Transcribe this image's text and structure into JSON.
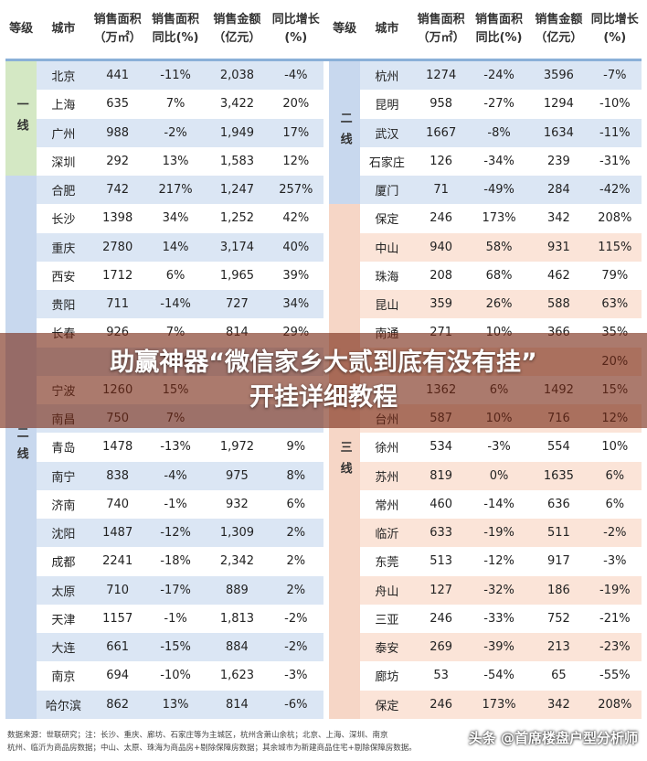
{
  "headers": {
    "tier": "等级",
    "city": "城市",
    "area": "销售面积（万㎡）",
    "area_yoy": "销售面积同比(%)",
    "amount": "销售金额（亿元）",
    "amount_yoy": "同比增长(%)",
    "amount_yoy_right": "同比增长(%)"
  },
  "tiers": {
    "t1": "一线",
    "t2": "二线",
    "t3": "三线"
  },
  "left_rows": [
    [
      "北京",
      "441",
      "-11%",
      "2,038",
      "-4%"
    ],
    [
      "上海",
      "635",
      "7%",
      "3,422",
      "20%"
    ],
    [
      "广州",
      "988",
      "-2%",
      "1,949",
      "17%"
    ],
    [
      "深圳",
      "292",
      "13%",
      "1,583",
      "12%"
    ],
    [
      "合肥",
      "742",
      "217%",
      "1,247",
      "257%"
    ],
    [
      "长沙",
      "1398",
      "34%",
      "1,252",
      "42%"
    ],
    [
      "重庆",
      "2780",
      "14%",
      "3,174",
      "40%"
    ],
    [
      "西安",
      "1712",
      "6%",
      "1,965",
      "39%"
    ],
    [
      "贵阳",
      "711",
      "-14%",
      "727",
      "34%"
    ],
    [
      "长春",
      "926",
      "7%",
      "814",
      "29%"
    ],
    [
      "",
      "",
      "11%",
      "",
      ""
    ],
    [
      "宁波",
      "1260",
      "15%",
      "",
      ""
    ],
    [
      "南昌",
      "750",
      "7%",
      "",
      ""
    ],
    [
      "青岛",
      "1478",
      "-13%",
      "1,972",
      "9%"
    ],
    [
      "南宁",
      "838",
      "-4%",
      "975",
      "8%"
    ],
    [
      "济南",
      "740",
      "-1%",
      "932",
      "6%"
    ],
    [
      "沈阳",
      "1487",
      "-12%",
      "1,309",
      "2%"
    ],
    [
      "成都",
      "2241",
      "-18%",
      "2,342",
      "2%"
    ],
    [
      "太原",
      "710",
      "-17%",
      "889",
      "2%"
    ],
    [
      "天津",
      "1157",
      "-1%",
      "1,813",
      "-2%"
    ],
    [
      "大连",
      "661",
      "-15%",
      "884",
      "-2%"
    ],
    [
      "南京",
      "694",
      "-10%",
      "1,623",
      "-3%"
    ],
    [
      "哈尔滨",
      "862",
      "13%",
      "814",
      "-6%"
    ]
  ],
  "right_rows": [
    [
      "杭州",
      "1274",
      "-24%",
      "3596",
      "-7%"
    ],
    [
      "昆明",
      "958",
      "-27%",
      "1294",
      "-10%"
    ],
    [
      "武汉",
      "1667",
      "-8%",
      "1634",
      "-11%"
    ],
    [
      "石家庄",
      "126",
      "-34%",
      "239",
      "-31%"
    ],
    [
      "厦门",
      "71",
      "-49%",
      "284",
      "-42%"
    ],
    [
      "保定",
      "246",
      "173%",
      "342",
      "208%"
    ],
    [
      "中山",
      "940",
      "58%",
      "931",
      "115%"
    ],
    [
      "珠海",
      "208",
      "68%",
      "462",
      "79%"
    ],
    [
      "昆山",
      "359",
      "26%",
      "588",
      "63%"
    ],
    [
      "南通",
      "271",
      "10%",
      "366",
      "35%"
    ],
    [
      "",
      "",
      "",
      "",
      "20%"
    ],
    [
      "",
      "1362",
      "6%",
      "1492",
      "15%"
    ],
    [
      "台州",
      "587",
      "10%",
      "716",
      "12%"
    ],
    [
      "徐州",
      "534",
      "-3%",
      "554",
      "10%"
    ],
    [
      "苏州",
      "819",
      "0%",
      "1635",
      "6%"
    ],
    [
      "常州",
      "460",
      "-14%",
      "636",
      "6%"
    ],
    [
      "临沂",
      "633",
      "-19%",
      "511",
      "-2%"
    ],
    [
      "东莞",
      "513",
      "-12%",
      "917",
      "-3%"
    ],
    [
      "舟山",
      "127",
      "-32%",
      "186",
      "-19%"
    ],
    [
      "三亚",
      "246",
      "-33%",
      "752",
      "-21%"
    ],
    [
      "泰安",
      "269",
      "-39%",
      "213",
      "-23%"
    ],
    [
      "廊坊",
      "53",
      "-54%",
      "65",
      "-55%"
    ],
    [
      "保定",
      "246",
      "173%",
      "342",
      "208%"
    ]
  ],
  "footnote": {
    "line1": "数据来源：世联研究；注：长沙、重庆、廊坊、石家庄等为主城区，杭州含萧山余杭；北京、上海、深圳、南京",
    "line2": "杭州、临沂为商品房数据；中山、太原、珠海为商品房+剔除保障房数据；其余城市为新建商品住宅+剔除保障房数据。"
  },
  "banner": {
    "line1": "助赢神器“微信家乡大贰到底有没有挂”",
    "line2": "开挂详细教程"
  },
  "watermark": "头条 @首席楼盘户型分析师"
}
